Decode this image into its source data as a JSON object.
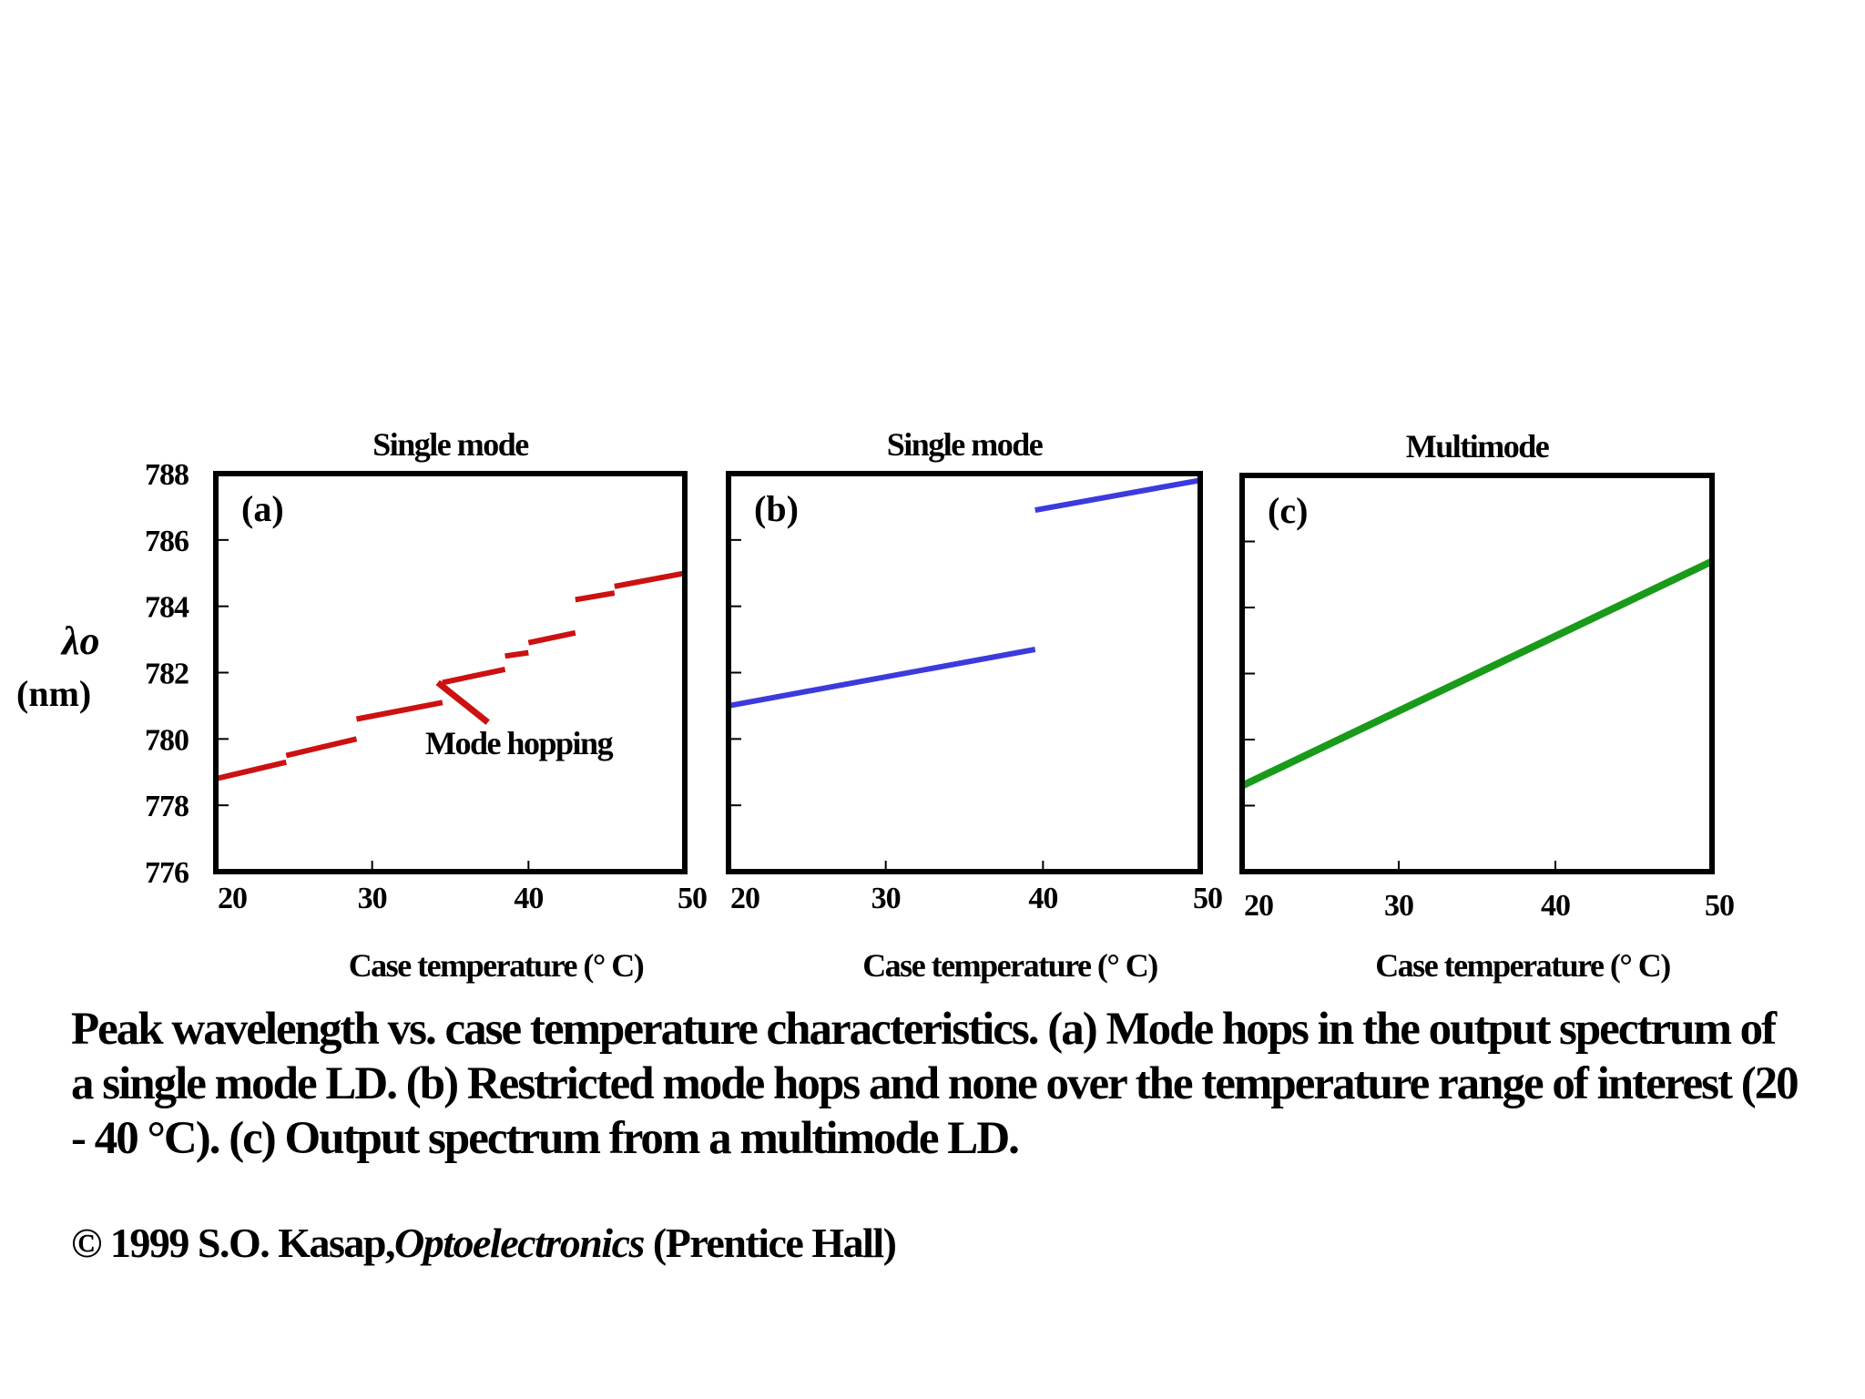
{
  "chart_data": [
    {
      "id": "a",
      "type": "line",
      "title": "Single mode",
      "panel_label": "(a)",
      "xlabel": "Case temperature (° C)",
      "ylabel": "λo",
      "ylabel_unit": "(nm)",
      "xlim": [
        20,
        50
      ],
      "ylim": [
        776,
        788
      ],
      "xticks": [
        20,
        30,
        40,
        50
      ],
      "yticks": [
        776,
        778,
        780,
        782,
        784,
        786,
        788
      ],
      "color": "#cc1111",
      "annotation": "Mode hopping",
      "series": [
        {
          "name": "segment-1",
          "x": [
            20,
            24.5
          ],
          "y": [
            778.8,
            779.3
          ]
        },
        {
          "name": "segment-2",
          "x": [
            24.5,
            29
          ],
          "y": [
            779.5,
            780.0
          ]
        },
        {
          "name": "segment-3",
          "x": [
            29,
            34.5
          ],
          "y": [
            780.6,
            781.1
          ]
        },
        {
          "name": "segment-4",
          "x": [
            34.5,
            38.5
          ],
          "y": [
            781.7,
            782.1
          ]
        },
        {
          "name": "segment-5",
          "x": [
            38.5,
            40
          ],
          "y": [
            782.5,
            782.6
          ]
        },
        {
          "name": "segment-6",
          "x": [
            40,
            43
          ],
          "y": [
            782.9,
            783.2
          ]
        },
        {
          "name": "segment-7",
          "x": [
            43,
            45.5
          ],
          "y": [
            784.2,
            784.4
          ]
        },
        {
          "name": "segment-8",
          "x": [
            45.5,
            50
          ],
          "y": [
            784.6,
            785.0
          ]
        }
      ]
    },
    {
      "id": "b",
      "type": "line",
      "title": "Single mode",
      "panel_label": "(b)",
      "xlabel": "Case temperature (° C)",
      "xlim": [
        20,
        50
      ],
      "ylim": [
        776,
        788
      ],
      "xticks": [
        20,
        30,
        40,
        50
      ],
      "yticks": [
        776,
        778,
        780,
        782,
        784,
        786,
        788
      ],
      "color": "#3b3bdd",
      "series": [
        {
          "name": "segment-1",
          "x": [
            20,
            39.5
          ],
          "y": [
            781.0,
            782.7
          ]
        },
        {
          "name": "segment-2",
          "x": [
            39.5,
            50
          ],
          "y": [
            786.9,
            787.8
          ]
        }
      ]
    },
    {
      "id": "c",
      "type": "line",
      "title": "Multimode",
      "panel_label": "(c)",
      "xlabel": "Case temperature (° C)",
      "xlim": [
        20,
        50
      ],
      "ylim": [
        776,
        788
      ],
      "xticks": [
        20,
        30,
        40,
        50
      ],
      "yticks": [
        776,
        778,
        780,
        782,
        784,
        786,
        788
      ],
      "color": "#1a9a1a",
      "series": [
        {
          "name": "line",
          "x": [
            20,
            50
          ],
          "y": [
            778.6,
            785.4
          ]
        }
      ]
    }
  ],
  "caption": "Peak wavelength vs. case temperature characteristics. (a) Mode hops in the output spectrum of a single mode LD. (b) Restricted mode hops and none over the temperature range of interest (20 - 40 °C). (c) Output spectrum from a multimode LD.",
  "copyright": {
    "prefix": "© 1999 S.O. Kasap,",
    "book": "Optoelectronics",
    "suffix": " (Prentice Hall)"
  }
}
